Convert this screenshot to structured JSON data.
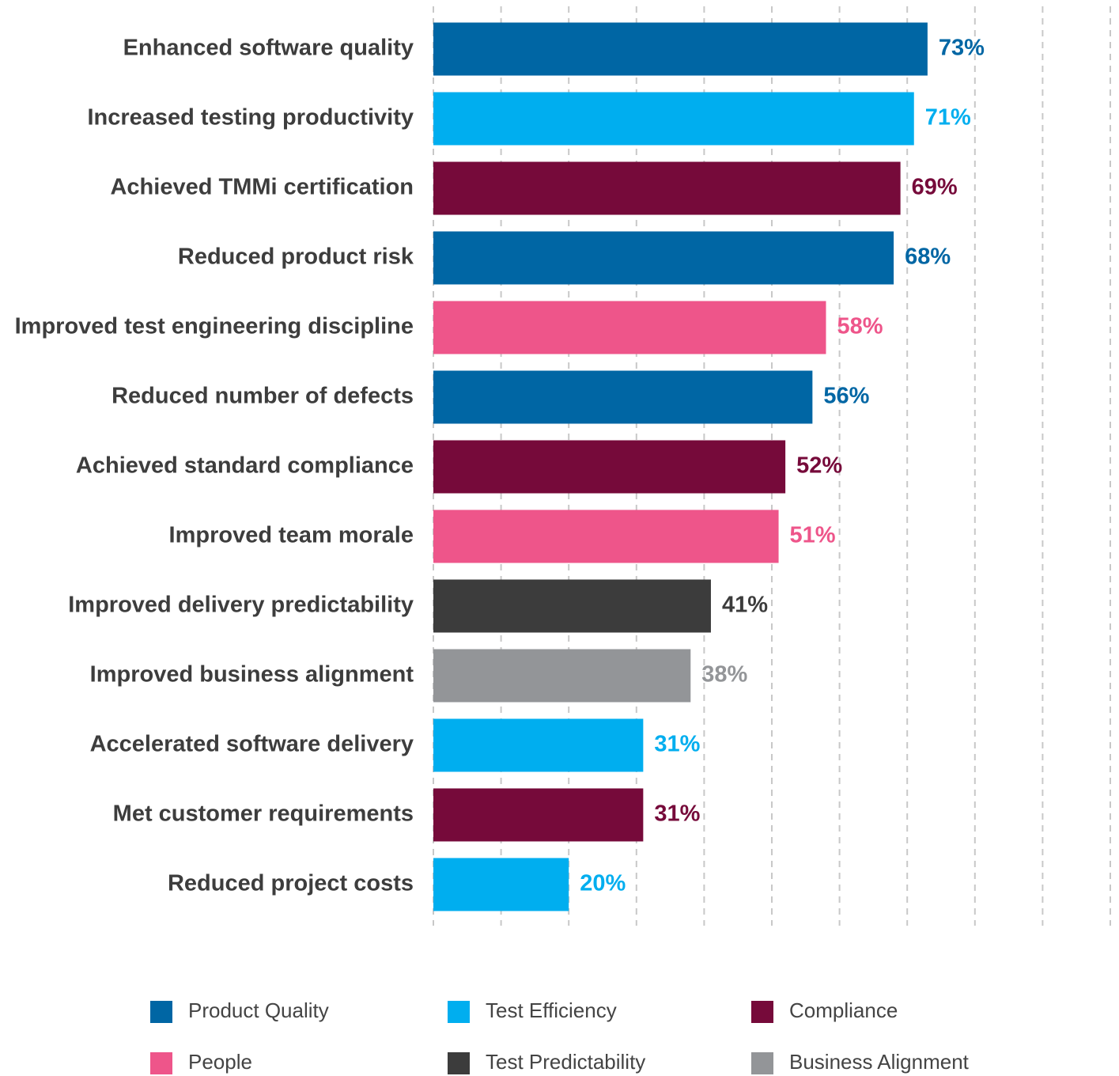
{
  "chart_data": {
    "type": "bar",
    "orientation": "horizontal",
    "categories": [
      "Enhanced software quality",
      "Increased testing productivity",
      "Achieved TMMi certification",
      "Reduced product risk",
      "Improved test engineering discipline",
      "Reduced number of defects",
      "Achieved standard compliance",
      "Improved team morale",
      "Improved delivery predictability",
      "Improved business alignment",
      "Accelerated software delivery",
      "Met customer requirements",
      "Reduced project costs"
    ],
    "series": [
      {
        "name": "Product Quality",
        "color": "#0066a4",
        "values": [
          73,
          null,
          null,
          68,
          null,
          56,
          null,
          null,
          null,
          null,
          null,
          null,
          null
        ],
        "value_labels": [
          "73%",
          null,
          null,
          "68%",
          null,
          "56%",
          null,
          null,
          null,
          null,
          null,
          null,
          null
        ]
      },
      {
        "name": "Test Efficiency",
        "color": "#00aeef",
        "values": [
          null,
          71,
          null,
          null,
          null,
          null,
          null,
          null,
          null,
          null,
          31,
          null,
          20
        ],
        "value_labels": [
          null,
          "71%",
          null,
          null,
          null,
          null,
          null,
          null,
          null,
          null,
          "31%",
          null,
          "20%"
        ]
      },
      {
        "name": "Compliance",
        "color": "#760a3a",
        "values": [
          null,
          null,
          69,
          null,
          null,
          null,
          52,
          null,
          null,
          null,
          null,
          31,
          null
        ],
        "value_labels": [
          null,
          null,
          "69%",
          null,
          null,
          null,
          "52%",
          null,
          null,
          null,
          null,
          "31%",
          null
        ]
      },
      {
        "name": "People",
        "color": "#ee558a",
        "values": [
          null,
          null,
          null,
          null,
          58,
          null,
          null,
          51,
          null,
          null,
          null,
          null,
          null
        ],
        "value_labels": [
          null,
          null,
          null,
          null,
          "58%",
          null,
          null,
          "51%",
          null,
          null,
          null,
          null,
          null
        ]
      },
      {
        "name": "Test Predictability",
        "color": "#3c3c3c",
        "values": [
          null,
          null,
          null,
          null,
          null,
          null,
          null,
          null,
          41,
          null,
          null,
          null,
          null
        ],
        "value_labels": [
          null,
          null,
          null,
          null,
          null,
          null,
          null,
          null,
          "41%",
          null,
          null,
          null,
          null
        ]
      },
      {
        "name": "Business Alignment",
        "color": "#939598",
        "values": [
          null,
          null,
          null,
          null,
          null,
          null,
          null,
          null,
          null,
          38,
          null,
          null,
          null
        ],
        "value_labels": [
          null,
          null,
          null,
          null,
          null,
          null,
          null,
          null,
          null,
          "38%",
          null,
          null,
          null
        ]
      }
    ],
    "xlim": [
      0,
      100
    ],
    "xticks": [
      0,
      10,
      20,
      30,
      40,
      50,
      60,
      70,
      80,
      90,
      100
    ],
    "grid": true
  }
}
